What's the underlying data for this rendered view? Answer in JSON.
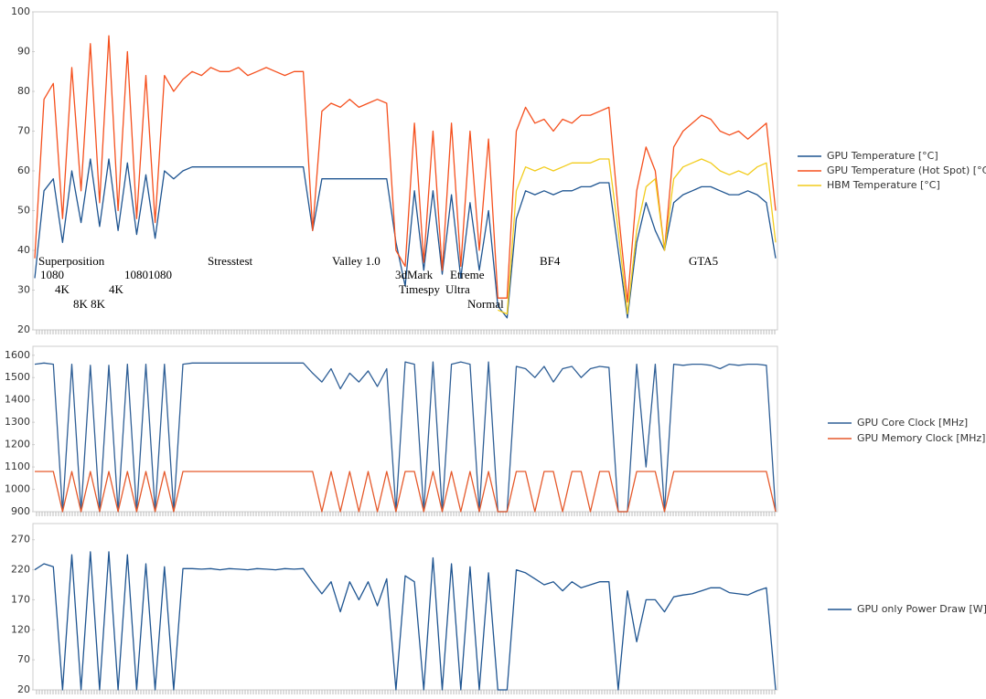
{
  "chart_data": [
    {
      "type": "line",
      "ylim": [
        20,
        100
      ],
      "yticks": [
        20,
        30,
        40,
        50,
        60,
        70,
        80,
        90,
        100
      ],
      "grid": false,
      "legend": "right",
      "categories": [
        null,
        null,
        null,
        null,
        null,
        null,
        null,
        null,
        null,
        null,
        null,
        null,
        null,
        null,
        null,
        null,
        null,
        null,
        null,
        null,
        null,
        null,
        null,
        null,
        null,
        null,
        null,
        null,
        null,
        null,
        null,
        null,
        null,
        null,
        null,
        null,
        null,
        null,
        null,
        null,
        null,
        null,
        null,
        null,
        null,
        null,
        null,
        null,
        null,
        null,
        null,
        null,
        null,
        null,
        null,
        null,
        null,
        null,
        null,
        null,
        null,
        null,
        null,
        null,
        null,
        null,
        null,
        null,
        null,
        null,
        null,
        null,
        null,
        null,
        null,
        null,
        null,
        null,
        null,
        null,
        null
      ],
      "annotations": [
        "Superposition",
        "1080",
        "4K",
        "8K 8K",
        "4K",
        "10801080",
        "Stresstest",
        "Valley 1.0",
        "3dMark",
        "Timespy",
        "Etreme",
        "Ultra",
        "Normal",
        "BF4",
        "GTA5"
      ],
      "series": [
        {
          "name": "GPU Temperature [°C]",
          "color": "#1f5591",
          "values": [
            33,
            55,
            58,
            42,
            60,
            47,
            63,
            46,
            63,
            45,
            62,
            44,
            59,
            43,
            60,
            58,
            60,
            61,
            61,
            61,
            61,
            61,
            61,
            61,
            61,
            61,
            61,
            61,
            61,
            61,
            45,
            58,
            58,
            58,
            58,
            58,
            58,
            58,
            58,
            42,
            31,
            55,
            35,
            55,
            34,
            54,
            33,
            52,
            35,
            50,
            26,
            23,
            48,
            55,
            54,
            55,
            54,
            55,
            55,
            56,
            56,
            57,
            57,
            40,
            23,
            42,
            52,
            45,
            40,
            52,
            54,
            55,
            56,
            56,
            55,
            54,
            54,
            55,
            54,
            52,
            38
          ]
        },
        {
          "name": "GPU Temperature (Hot Spot) [°C]",
          "color": "#f5501e",
          "values": [
            38,
            78,
            82,
            48,
            86,
            55,
            92,
            52,
            94,
            50,
            90,
            48,
            84,
            47,
            84,
            80,
            83,
            85,
            84,
            86,
            85,
            85,
            86,
            84,
            85,
            86,
            85,
            84,
            85,
            85,
            45,
            75,
            77,
            76,
            78,
            76,
            77,
            78,
            77,
            40,
            36,
            72,
            37,
            70,
            35,
            72,
            36,
            70,
            40,
            68,
            28,
            28,
            70,
            76,
            72,
            73,
            70,
            73,
            72,
            74,
            74,
            75,
            76,
            50,
            27,
            55,
            66,
            60,
            40,
            66,
            70,
            72,
            74,
            73,
            70,
            69,
            70,
            68,
            70,
            72,
            50
          ]
        },
        {
          "name": "HBM Temperature [°C]",
          "color": "#f2cc1c",
          "values": [
            null,
            null,
            null,
            null,
            null,
            null,
            null,
            null,
            null,
            null,
            null,
            null,
            null,
            null,
            null,
            null,
            null,
            null,
            null,
            null,
            null,
            null,
            null,
            null,
            null,
            null,
            null,
            null,
            null,
            null,
            null,
            null,
            null,
            null,
            null,
            null,
            null,
            null,
            null,
            null,
            null,
            null,
            null,
            null,
            null,
            null,
            null,
            null,
            null,
            null,
            25,
            24,
            55,
            61,
            60,
            61,
            60,
            61,
            62,
            62,
            62,
            63,
            63,
            45,
            24,
            45,
            56,
            58,
            40,
            58,
            61,
            62,
            63,
            62,
            60,
            59,
            60,
            59,
            61,
            62,
            42
          ]
        }
      ]
    },
    {
      "type": "line",
      "ylim": [
        900,
        1640
      ],
      "yticks": [
        900,
        1000,
        1100,
        1200,
        1300,
        1400,
        1500,
        1600
      ],
      "grid": false,
      "legend": "right",
      "categories": [
        null,
        null,
        null,
        null,
        null,
        null,
        null,
        null,
        null,
        null,
        null,
        null,
        null,
        null,
        null,
        null,
        null,
        null,
        null,
        null,
        null,
        null,
        null,
        null,
        null,
        null,
        null,
        null,
        null,
        null,
        null,
        null,
        null,
        null,
        null,
        null,
        null,
        null,
        null,
        null,
        null,
        null,
        null,
        null,
        null,
        null,
        null,
        null,
        null,
        null,
        null,
        null,
        null,
        null,
        null,
        null,
        null,
        null,
        null,
        null,
        null,
        null,
        null,
        null,
        null,
        null,
        null,
        null,
        null,
        null,
        null,
        null,
        null,
        null,
        null,
        null,
        null,
        null,
        null,
        null,
        null
      ],
      "series": [
        {
          "name": "GPU Core Clock [MHz]",
          "color": "#2f5f96",
          "values": [
            1560,
            1565,
            1560,
            900,
            1560,
            900,
            1555,
            900,
            1555,
            900,
            1560,
            900,
            1560,
            900,
            1560,
            900,
            1560,
            1565,
            1565,
            1565,
            1565,
            1565,
            1565,
            1565,
            1565,
            1565,
            1565,
            1565,
            1565,
            1565,
            1520,
            1480,
            1540,
            1450,
            1520,
            1480,
            1530,
            1460,
            1540,
            900,
            1570,
            1560,
            900,
            1570,
            900,
            1560,
            1570,
            1560,
            900,
            1570,
            900,
            900,
            1550,
            1540,
            1500,
            1550,
            1480,
            1540,
            1550,
            1500,
            1540,
            1550,
            1545,
            900,
            900,
            1560,
            1100,
            1560,
            900,
            1560,
            1555,
            1560,
            1560,
            1555,
            1540,
            1560,
            1555,
            1560,
            1560,
            1555,
            900
          ]
        },
        {
          "name": "GPU Memory Clock [MHz]",
          "color": "#e5592b",
          "values": [
            1080,
            1080,
            1080,
            900,
            1080,
            900,
            1080,
            900,
            1080,
            900,
            1080,
            900,
            1080,
            900,
            1080,
            900,
            1080,
            1080,
            1080,
            1080,
            1080,
            1080,
            1080,
            1080,
            1080,
            1080,
            1080,
            1080,
            1080,
            1080,
            1080,
            900,
            1080,
            900,
            1080,
            900,
            1080,
            900,
            1080,
            900,
            1080,
            1080,
            900,
            1080,
            900,
            1080,
            900,
            1080,
            900,
            1080,
            900,
            900,
            1080,
            1080,
            900,
            1080,
            1080,
            900,
            1080,
            1080,
            900,
            1080,
            1080,
            900,
            900,
            1080,
            1080,
            1080,
            900,
            1080,
            1080,
            1080,
            1080,
            1080,
            1080,
            1080,
            1080,
            1080,
            1080,
            1080,
            900
          ]
        }
      ]
    },
    {
      "type": "line",
      "ylim": [
        20,
        297
      ],
      "yticks": [
        20,
        70,
        120,
        170,
        220,
        270
      ],
      "grid": false,
      "legend": "right",
      "categories": [
        null,
        null,
        null,
        null,
        null,
        null,
        null,
        null,
        null,
        null,
        null,
        null,
        null,
        null,
        null,
        null,
        null,
        null,
        null,
        null,
        null,
        null,
        null,
        null,
        null,
        null,
        null,
        null,
        null,
        null,
        null,
        null,
        null,
        null,
        null,
        null,
        null,
        null,
        null,
        null,
        null,
        null,
        null,
        null,
        null,
        null,
        null,
        null,
        null,
        null,
        null,
        null,
        null,
        null,
        null,
        null,
        null,
        null,
        null,
        null,
        null,
        null,
        null,
        null,
        null,
        null,
        null,
        null,
        null,
        null,
        null,
        null,
        null,
        null,
        null,
        null,
        null,
        null,
        null,
        null,
        null
      ],
      "series": [
        {
          "name": "GPU only Power Draw [W]",
          "color": "#1f5591",
          "values": [
            220,
            230,
            225,
            20,
            245,
            20,
            250,
            20,
            250,
            20,
            245,
            20,
            230,
            20,
            225,
            20,
            222,
            222,
            221,
            222,
            220,
            222,
            221,
            220,
            222,
            221,
            220,
            222,
            221,
            222,
            200,
            180,
            200,
            150,
            200,
            170,
            200,
            160,
            205,
            20,
            210,
            200,
            20,
            240,
            20,
            230,
            20,
            225,
            20,
            215,
            20,
            20,
            220,
            215,
            205,
            195,
            200,
            185,
            200,
            190,
            195,
            200,
            200,
            20,
            185,
            100,
            170,
            170,
            150,
            175,
            178,
            180,
            185,
            190,
            190,
            182,
            180,
            178,
            185,
            190,
            20
          ]
        }
      ]
    }
  ]
}
